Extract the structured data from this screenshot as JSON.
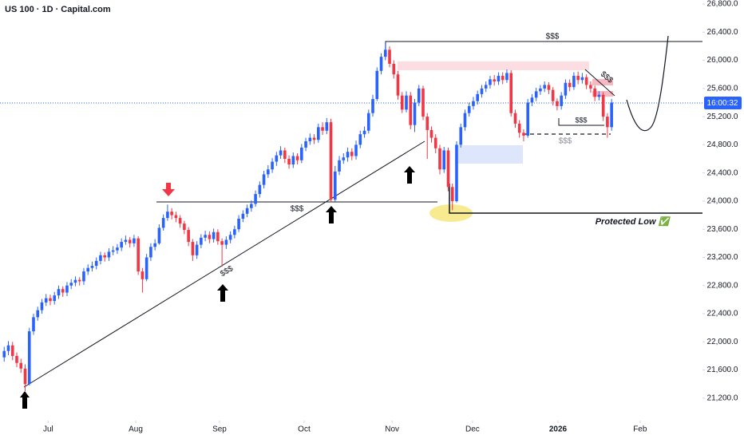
{
  "chart_data": {
    "type": "candlestick",
    "title": "US 100 · 1D · Capital.com",
    "up_color": "#2962ff",
    "down_color": "#f23645",
    "open": [
      21780,
      21870,
      21950,
      21800,
      21700,
      21620,
      21400,
      22150,
      22350,
      22450,
      22560,
      22620,
      22580,
      22660,
      22750,
      22700,
      22800,
      22840,
      22880,
      22860,
      23000,
      23050,
      23080,
      23150,
      23230,
      23200,
      23280,
      23300,
      23340,
      23420,
      23450,
      23400,
      23470,
      23000,
      22890,
      23200,
      23350,
      23400,
      23620,
      23760,
      23850,
      23800,
      23760,
      23680,
      23590,
      23420,
      23230,
      23380,
      23480,
      23520,
      23460,
      23560,
      23430,
      23380,
      23450,
      23520,
      23600,
      23750,
      23820,
      23900,
      23960,
      24100,
      24230,
      24380,
      24450,
      24560,
      24650,
      24720,
      24600,
      24520,
      24640,
      24580,
      24760,
      24850,
      24900,
      24870,
      25050,
      25000,
      25120,
      24020,
      24420,
      24580,
      24620,
      24700,
      24640,
      24800,
      24950,
      25000,
      25250,
      25450,
      25850,
      26050,
      26150,
      25950,
      25800,
      25500,
      25300,
      25500,
      25080,
      25400,
      25600,
      25200,
      25010,
      24900,
      24750,
      24450,
      24720,
      24200,
      24000,
      24800,
      25050,
      25250,
      25350,
      25420,
      25520,
      25600,
      25650,
      25730,
      25700,
      25780,
      25720,
      25820,
      25250,
      25100,
      24970,
      24930,
      25400,
      25470,
      25560,
      25600,
      25650,
      25580,
      25420,
      25350,
      25500,
      25680,
      25620,
      25780,
      25720,
      25760,
      25650,
      25600,
      25480,
      25510,
      25200,
      25050
    ],
    "high": [
      21930,
      22010,
      22000,
      21850,
      21760,
      21680,
      22200,
      22400,
      22500,
      22610,
      22680,
      22670,
      22710,
      22800,
      22790,
      22850,
      22890,
      22930,
      22920,
      23050,
      23100,
      23140,
      23200,
      23280,
      23270,
      23330,
      23360,
      23390,
      23470,
      23510,
      23490,
      23520,
      23500,
      23050,
      23250,
      23400,
      23460,
      23670,
      23810,
      23950,
      23900,
      23850,
      23800,
      23720,
      23630,
      23460,
      23430,
      23530,
      23580,
      23570,
      23610,
      23600,
      23470,
      23500,
      23570,
      23650,
      23800,
      23870,
      23950,
      24010,
      24150,
      24280,
      24430,
      24510,
      24610,
      24700,
      24780,
      24760,
      24650,
      24690,
      24680,
      24810,
      24900,
      24960,
      24950,
      25100,
      25120,
      25180,
      25170,
      24500,
      24640,
      24680,
      24760,
      24750,
      24860,
      25000,
      25060,
      25300,
      25510,
      25900,
      26100,
      26250,
      26200,
      26000,
      25850,
      25550,
      25560,
      25550,
      25450,
      25650,
      25640,
      25250,
      25060,
      24950,
      24800,
      24770,
      24760,
      24250,
      24850,
      25100,
      25300,
      25400,
      25480,
      25570,
      25650,
      25700,
      25780,
      25790,
      25830,
      25830,
      25870,
      25860,
      25300,
      25150,
      25020,
      25450,
      25520,
      25610,
      25650,
      25700,
      25690,
      25620,
      25460,
      25550,
      25730,
      25730,
      25830,
      25840,
      25820,
      25800,
      25700,
      25640,
      25560,
      25550,
      25250,
      25450
    ],
    "low": [
      21720,
      21810,
      21740,
      21640,
      21560,
      21300,
      21380,
      22100,
      22300,
      22400,
      22510,
      22520,
      22530,
      22610,
      22640,
      22650,
      22750,
      22790,
      22800,
      22810,
      22950,
      23000,
      23030,
      23100,
      23140,
      23150,
      23230,
      23250,
      23290,
      23380,
      23340,
      23350,
      22950,
      22700,
      22860,
      23150,
      23300,
      23380,
      23580,
      23720,
      23740,
      23700,
      23620,
      23530,
      23360,
      23150,
      23180,
      23330,
      23430,
      23400,
      23410,
      23380,
      23070,
      23320,
      23400,
      23470,
      23560,
      23700,
      23770,
      23850,
      23920,
      24050,
      24180,
      24330,
      24400,
      24500,
      24600,
      24540,
      24460,
      24470,
      24520,
      24540,
      24710,
      24800,
      24810,
      24830,
      24940,
      24950,
      23980,
      23990,
      24370,
      24530,
      24560,
      24580,
      24590,
      24750,
      24900,
      24960,
      25200,
      25420,
      25800,
      26000,
      25900,
      25740,
      25440,
      25250,
      25260,
      25020,
      24980,
      25350,
      25150,
      24600,
      24830,
      24680,
      24380,
      24400,
      24140,
      23870,
      23980,
      24760,
      25000,
      25200,
      25300,
      25370,
      25470,
      25550,
      25600,
      25640,
      25650,
      25660,
      25680,
      25200,
      25040,
      24900,
      24850,
      24900,
      25350,
      25420,
      25510,
      25550,
      25520,
      25360,
      25290,
      25300,
      25450,
      25560,
      25580,
      25660,
      25670,
      25590,
      25540,
      25420,
      25430,
      25140,
      24900,
      25000
    ],
    "close": [
      21870,
      21950,
      21800,
      21700,
      21620,
      21400,
      22150,
      22350,
      22450,
      22560,
      22620,
      22580,
      22660,
      22750,
      22700,
      22800,
      22840,
      22880,
      22860,
      23000,
      23050,
      23080,
      23150,
      23230,
      23200,
      23280,
      23300,
      23340,
      23420,
      23450,
      23400,
      23470,
      23000,
      22890,
      23200,
      23350,
      23400,
      23620,
      23760,
      23850,
      23800,
      23760,
      23680,
      23590,
      23420,
      23230,
      23380,
      23480,
      23520,
      23460,
      23560,
      23430,
      23380,
      23450,
      23520,
      23600,
      23750,
      23820,
      23900,
      23960,
      24100,
      24230,
      24380,
      24450,
      24560,
      24650,
      24720,
      24600,
      24520,
      24640,
      24580,
      24760,
      24850,
      24900,
      24870,
      25050,
      25000,
      25120,
      24020,
      24420,
      24580,
      24620,
      24700,
      24640,
      24800,
      24950,
      25000,
      25250,
      25450,
      25850,
      26050,
      26150,
      25950,
      25800,
      25500,
      25300,
      25500,
      25080,
      25400,
      25600,
      25200,
      25010,
      24900,
      24750,
      24450,
      24720,
      24200,
      24000,
      24800,
      25050,
      25250,
      25350,
      25420,
      25520,
      25600,
      25650,
      25730,
      25700,
      25780,
      25720,
      25820,
      25250,
      25100,
      24970,
      24930,
      25400,
      25470,
      25560,
      25600,
      25650,
      25580,
      25420,
      25350,
      25500,
      25680,
      25620,
      25780,
      25720,
      25760,
      25650,
      25600,
      25480,
      25510,
      25200,
      25050,
      25400
    ],
    "xlim": [
      -1,
      166.7
    ],
    "xticks": [
      {
        "value": 10.5,
        "label": "Jul"
      },
      {
        "value": 31.4,
        "label": "Aug"
      },
      {
        "value": 51.4,
        "label": "Sep"
      },
      {
        "value": 71.6,
        "label": "Oct"
      },
      {
        "value": 92.6,
        "label": "Nov"
      },
      {
        "value": 111.8,
        "label": "Dec"
      },
      {
        "value": 132.2,
        "label": "2026"
      },
      {
        "value": 151.8,
        "label": "Feb"
      }
    ],
    "ylim": [
      20960,
      26857
    ],
    "yticks": [
      {
        "value": 26800,
        "label": "26,800.0"
      },
      {
        "value": 26400,
        "label": "26,400.0"
      },
      {
        "value": 26000,
        "label": "26,000.0"
      },
      {
        "value": 25600,
        "label": "25,600.0"
      },
      {
        "value": 25200,
        "label": "25,200.0"
      },
      {
        "value": 24800,
        "label": "24,800.0"
      },
      {
        "value": 24400,
        "label": "24,400.0"
      },
      {
        "value": 24000,
        "label": "24,000.0"
      },
      {
        "value": 23600,
        "label": "23,600.0"
      },
      {
        "value": 23200,
        "label": "23,200.0"
      },
      {
        "value": 22800,
        "label": "22,800.0"
      },
      {
        "value": 22400,
        "label": "22,400.0"
      },
      {
        "value": 22000,
        "label": "22,000.0"
      },
      {
        "value": 21600,
        "label": "21,600.0"
      },
      {
        "value": 21200,
        "label": "21,200.0"
      }
    ],
    "grid": false,
    "annotations": [
      "$$$",
      "$$$",
      "$$$",
      "$$$",
      "$$$",
      "$$$",
      "Protected Low ✅"
    ],
    "countdown": "16:00:32"
  }
}
